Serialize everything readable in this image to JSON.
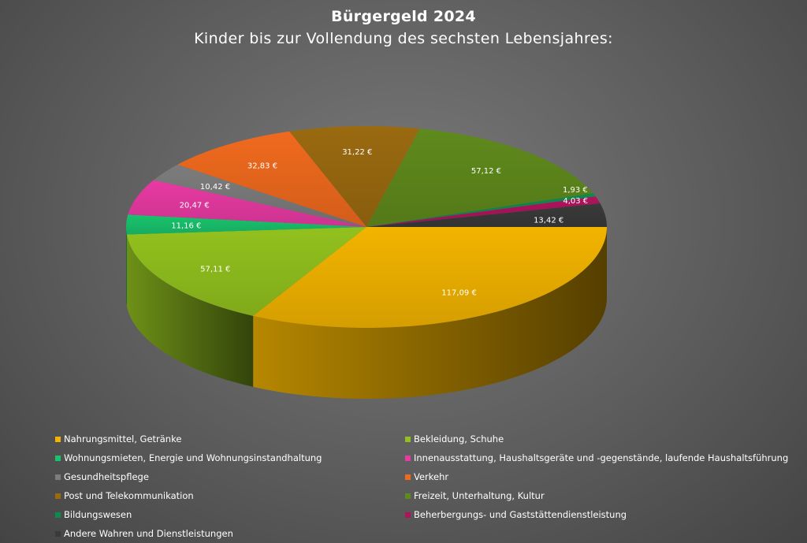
{
  "chart_data": {
    "type": "pie",
    "title": "Bürgergeld 2024",
    "subtitle": "Kinder bis zur Vollendung des sechsten Lebensjahres:",
    "legend_position": "bottom",
    "slices": [
      {
        "name": "Nahrungsmittel, Getränke",
        "value": 117.09,
        "label": "117,09 €",
        "color": "#f2b400"
      },
      {
        "name": "Bekleidung, Schuhe",
        "value": 57.11,
        "label": "57,11 €",
        "color": "#92c11e"
      },
      {
        "name": "Wohnungsmieten, Energie und Wohnungsinstandhaltung",
        "value": 11.16,
        "label": "11,16 €",
        "color": "#19c36d"
      },
      {
        "name": "Innenausstattung, Haushaltsgeräte und -gegenstände, laufende Haushaltsführung",
        "value": 20.47,
        "label": "20,47 €",
        "color": "#e83aa3"
      },
      {
        "name": "Gesundheitspflege",
        "value": 10.42,
        "label": "10,42 €",
        "color": "#7c7c7c"
      },
      {
        "name": "Verkehr",
        "value": 32.83,
        "label": "32,83 €",
        "color": "#f06a1e"
      },
      {
        "name": "Post und Telekommunikation",
        "value": 31.22,
        "label": "31,22 €",
        "color": "#9a6a10"
      },
      {
        "name": "Freizeit, Unterhaltung, Kultur",
        "value": 57.12,
        "label": "57,12 €",
        "color": "#5f8a1c"
      },
      {
        "name": "Bildungswesen",
        "value": 1.93,
        "label": "1,93 €",
        "color": "#0f8a4e"
      },
      {
        "name": "Beherbergungs- und Gaststättendienstleistung",
        "value": 4.03,
        "label": "4,03 €",
        "color": "#b0135c"
      },
      {
        "name": "Andere Wahren und Dienstleistungen",
        "value": 13.42,
        "label": "13,42 €",
        "color": "#3a3a3a"
      }
    ]
  }
}
